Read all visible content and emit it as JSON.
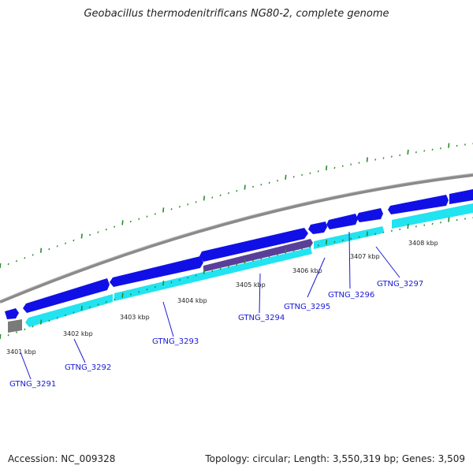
{
  "header": {
    "title": "Geobacillus thermodenitrificans NG80-2, complete genome"
  },
  "footer": {
    "accession": "Accession: NC_009328",
    "stats": "Topology: circular; Length: 3,550,319 bp; Genes: 3,509"
  },
  "colors": {
    "forward_cds": "#1010e6",
    "reverse_cds": "#22e3f0",
    "backbone": "#888888",
    "tick": "#2a8a2a",
    "label": "#1a1ad6",
    "rna_feature": "#5a3f9a",
    "other_feature": "#777777"
  },
  "kbp_labels": [
    {
      "id": "kbp-3401",
      "text": "3401 kbp"
    },
    {
      "id": "kbp-3402",
      "text": "3402 kbp"
    },
    {
      "id": "kbp-3403",
      "text": "3403 kbp"
    },
    {
      "id": "kbp-3404",
      "text": "3404 kbp"
    },
    {
      "id": "kbp-3405",
      "text": "3405 kbp"
    },
    {
      "id": "kbp-3406",
      "text": "3406 kbp"
    },
    {
      "id": "kbp-3407",
      "text": "3407 kbp"
    },
    {
      "id": "kbp-3408",
      "text": "3408 kbp"
    }
  ],
  "gene_labels": [
    {
      "id": "gtng-3291",
      "text": "GTNG_3291"
    },
    {
      "id": "gtng-3292",
      "text": "GTNG_3292"
    },
    {
      "id": "gtng-3293",
      "text": "GTNG_3293"
    },
    {
      "id": "gtng-3294",
      "text": "GTNG_3294"
    },
    {
      "id": "gtng-3295",
      "text": "GTNG_3295"
    },
    {
      "id": "gtng-3296",
      "text": "GTNG_3296"
    },
    {
      "id": "gtng-3297",
      "text": "GTNG_3297"
    }
  ]
}
